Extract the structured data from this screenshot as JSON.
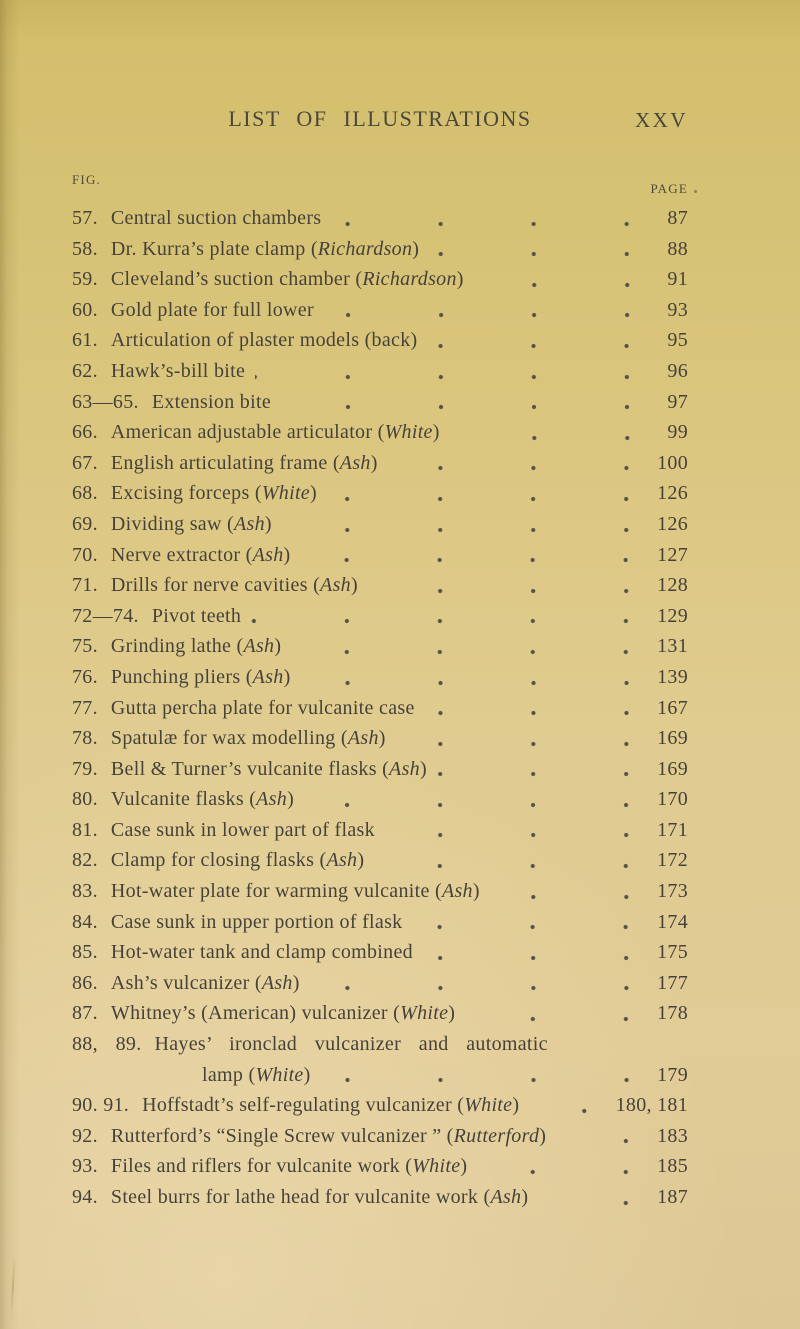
{
  "document": {
    "heading": "LIST OF ILLUSTRATIONS",
    "folio": "XXV",
    "column_headers": {
      "fig": "FIG.",
      "page": "PAGE"
    },
    "colors": {
      "paper_top": "#d2be6a",
      "paper_bottom": "#ddc795",
      "ink": "#46423a"
    },
    "items": [
      {
        "fig": "57.",
        "segments": [
          {
            "text": "Central suction chambers",
            "italic": false
          }
        ],
        "page": "87"
      },
      {
        "fig": "58.",
        "segments": [
          {
            "text": "Dr. Kurra’s plate clamp (",
            "italic": false
          },
          {
            "text": "Richardson",
            "italic": true
          },
          {
            "text": ")",
            "italic": false
          }
        ],
        "page": "88"
      },
      {
        "fig": "59.",
        "segments": [
          {
            "text": "Cleveland’s suction chamber (",
            "italic": false
          },
          {
            "text": "Richardson",
            "italic": true
          },
          {
            "text": ")",
            "italic": false
          }
        ],
        "page": "91"
      },
      {
        "fig": "60.",
        "segments": [
          {
            "text": "Gold plate for full lower",
            "italic": false
          }
        ],
        "page": "93"
      },
      {
        "fig": "61.",
        "segments": [
          {
            "text": "Articulation of plaster models (back)",
            "italic": false
          }
        ],
        "page": "95"
      },
      {
        "fig": "62.",
        "segments": [
          {
            "text": "Hawk’s-bill bite",
            "italic": false
          }
        ],
        "page": "96"
      },
      {
        "fig": "63—65.",
        "segments": [
          {
            "text": "Extension bite",
            "italic": false
          }
        ],
        "page": "97"
      },
      {
        "fig": "66.",
        "segments": [
          {
            "text": "American adjustable articulator (",
            "italic": false
          },
          {
            "text": "White",
            "italic": true
          },
          {
            "text": ")",
            "italic": false
          }
        ],
        "page": "99"
      },
      {
        "fig": "67.",
        "segments": [
          {
            "text": "English articulating frame (",
            "italic": false
          },
          {
            "text": "Ash",
            "italic": true
          },
          {
            "text": ")",
            "italic": false
          }
        ],
        "page": "100"
      },
      {
        "fig": "68.",
        "segments": [
          {
            "text": "Excising forceps (",
            "italic": false
          },
          {
            "text": "White",
            "italic": true
          },
          {
            "text": ")",
            "italic": false
          }
        ],
        "page": "126"
      },
      {
        "fig": "69.",
        "segments": [
          {
            "text": "Dividing saw (",
            "italic": false
          },
          {
            "text": "Ash",
            "italic": true
          },
          {
            "text": ")",
            "italic": false
          }
        ],
        "page": "126"
      },
      {
        "fig": "70.",
        "segments": [
          {
            "text": "Nerve extractor (",
            "italic": false
          },
          {
            "text": "Ash",
            "italic": true
          },
          {
            "text": ")",
            "italic": false
          }
        ],
        "page": "127"
      },
      {
        "fig": "71.",
        "segments": [
          {
            "text": "Drills for nerve cavities (",
            "italic": false
          },
          {
            "text": "Ash",
            "italic": true
          },
          {
            "text": ")",
            "italic": false
          }
        ],
        "page": "128"
      },
      {
        "fig": "72—74.",
        "segments": [
          {
            "text": "Pivot teeth",
            "italic": false
          }
        ],
        "page": "129"
      },
      {
        "fig": "75.",
        "segments": [
          {
            "text": "Grinding lathe (",
            "italic": false
          },
          {
            "text": "Ash",
            "italic": true
          },
          {
            "text": ")",
            "italic": false
          }
        ],
        "page": "131"
      },
      {
        "fig": "76.",
        "segments": [
          {
            "text": "Punching pliers (",
            "italic": false
          },
          {
            "text": "Ash",
            "italic": true
          },
          {
            "text": ")",
            "italic": false
          }
        ],
        "page": "139"
      },
      {
        "fig": "77.",
        "segments": [
          {
            "text": "Gutta percha plate for vulcanite case",
            "italic": false
          }
        ],
        "page": "167"
      },
      {
        "fig": "78.",
        "segments": [
          {
            "text": "Spatulæ for wax modelling (",
            "italic": false
          },
          {
            "text": "Ash",
            "italic": true
          },
          {
            "text": ")",
            "italic": false
          }
        ],
        "page": "169"
      },
      {
        "fig": "79.",
        "segments": [
          {
            "text": "Bell & Turner’s vulcanite flasks (",
            "italic": false
          },
          {
            "text": "Ash",
            "italic": true
          },
          {
            "text": ")",
            "italic": false
          }
        ],
        "page": "169"
      },
      {
        "fig": "80.",
        "segments": [
          {
            "text": "Vulcanite flasks (",
            "italic": false
          },
          {
            "text": "Ash",
            "italic": true
          },
          {
            "text": ")",
            "italic": false
          }
        ],
        "page": "170"
      },
      {
        "fig": "81.",
        "segments": [
          {
            "text": "Case sunk in lower part of flask",
            "italic": false
          }
        ],
        "page": "171"
      },
      {
        "fig": "82.",
        "segments": [
          {
            "text": "Clamp for closing flasks (",
            "italic": false
          },
          {
            "text": "Ash",
            "italic": true
          },
          {
            "text": ")",
            "italic": false
          }
        ],
        "page": "172"
      },
      {
        "fig": "83.",
        "segments": [
          {
            "text": "Hot-water plate for warming vulcanite (",
            "italic": false
          },
          {
            "text": "Ash",
            "italic": true
          },
          {
            "text": ")",
            "italic": false
          }
        ],
        "page": "173"
      },
      {
        "fig": "84.",
        "segments": [
          {
            "text": "Case sunk in upper portion of flask",
            "italic": false
          }
        ],
        "page": "174"
      },
      {
        "fig": "85.",
        "segments": [
          {
            "text": "Hot-water tank and clamp combined",
            "italic": false
          }
        ],
        "page": "175"
      },
      {
        "fig": "86.",
        "segments": [
          {
            "text": "Ash’s vulcanizer (",
            "italic": false
          },
          {
            "text": "Ash",
            "italic": true
          },
          {
            "text": ")",
            "italic": false
          }
        ],
        "page": "177"
      },
      {
        "fig": "87.",
        "segments": [
          {
            "text": "Whitney’s (American) vulcanizer (",
            "italic": false
          },
          {
            "text": "White",
            "italic": true
          },
          {
            "text": ")",
            "italic": false
          }
        ],
        "page": "178"
      },
      {
        "fig": "88, 89.",
        "segments": [
          {
            "text": "Hayes’ ironclad vulcanizer and automatic",
            "italic": false
          }
        ],
        "page": "",
        "line2": {
          "segments": [
            {
              "text": "lamp (",
              "italic": false
            },
            {
              "text": "White",
              "italic": true
            },
            {
              "text": ")",
              "italic": false
            }
          ],
          "page": "179"
        }
      },
      {
        "fig": "90. 91.",
        "segments": [
          {
            "text": "Hoffstadt’s self-regulating vulcanizer (",
            "italic": false
          },
          {
            "text": "White",
            "italic": true
          },
          {
            "text": ")",
            "italic": false
          }
        ],
        "page": "180, 181"
      },
      {
        "fig": "92.",
        "segments": [
          {
            "text": "Rutterford’s “Single Screw vulcanizer ” (",
            "italic": false
          },
          {
            "text": "Rutterford",
            "italic": true
          },
          {
            "text": ")",
            "italic": false
          }
        ],
        "page": "183"
      },
      {
        "fig": "93.",
        "segments": [
          {
            "text": "Files and riflers for vulcanite work (",
            "italic": false
          },
          {
            "text": "White",
            "italic": true
          },
          {
            "text": ")",
            "italic": false
          }
        ],
        "page": "185"
      },
      {
        "fig": "94.",
        "segments": [
          {
            "text": "Steel burrs for lathe head for vulcanite work (",
            "italic": false
          },
          {
            "text": "Ash",
            "italic": true
          },
          {
            "text": ")",
            "italic": false
          }
        ],
        "page": "187"
      }
    ]
  }
}
